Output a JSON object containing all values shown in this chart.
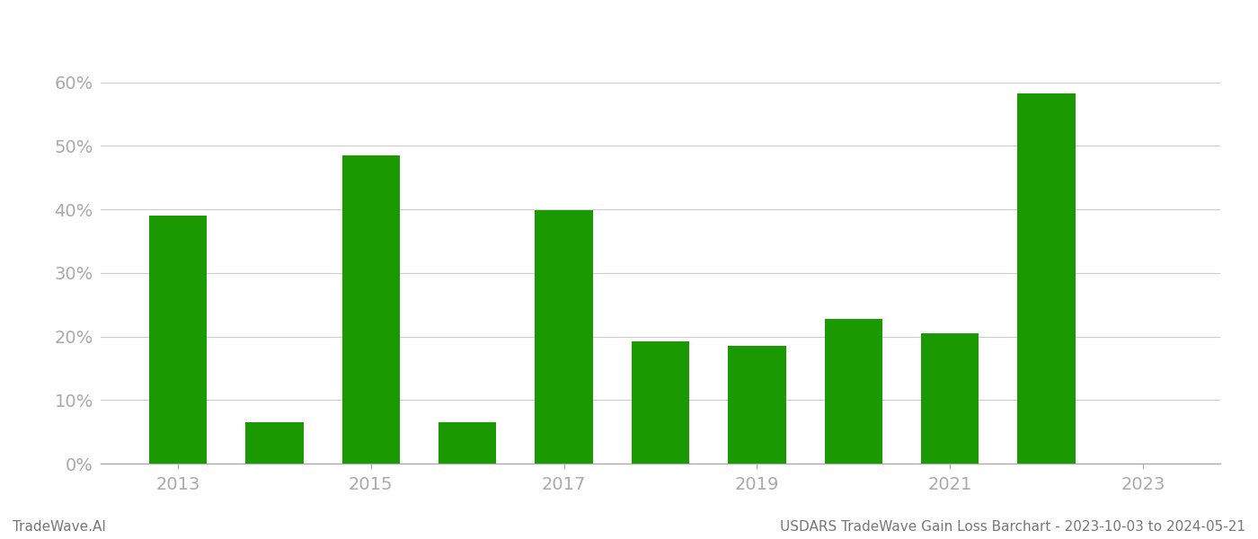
{
  "years": [
    2013,
    2014,
    2015,
    2016,
    2017,
    2018,
    2019,
    2020,
    2021,
    2022
  ],
  "values": [
    0.39,
    0.065,
    0.485,
    0.065,
    0.398,
    0.192,
    0.185,
    0.228,
    0.205,
    0.582
  ],
  "bar_color": "#1a9a00",
  "background_color": "#ffffff",
  "grid_color": "#cccccc",
  "axis_color": "#aaaaaa",
  "tick_label_color": "#aaaaaa",
  "yticks": [
    0.0,
    0.1,
    0.2,
    0.3,
    0.4,
    0.5,
    0.6
  ],
  "ytick_labels": [
    "0%",
    "10%",
    "20%",
    "30%",
    "40%",
    "50%",
    "60%"
  ],
  "xtick_labels": [
    "2013",
    "2015",
    "2017",
    "2019",
    "2021",
    "2023"
  ],
  "xtick_positions": [
    2013,
    2015,
    2017,
    2019,
    2021,
    2023
  ],
  "xlim": [
    2012.2,
    2023.8
  ],
  "ylim": [
    0,
    0.67
  ],
  "footer_left": "TradeWave.AI",
  "footer_right": "USDARS TradeWave Gain Loss Barchart - 2023-10-03 to 2024-05-21",
  "bar_width": 0.6,
  "tick_fontsize": 14,
  "footer_fontsize": 11,
  "footer_color": "#777777"
}
